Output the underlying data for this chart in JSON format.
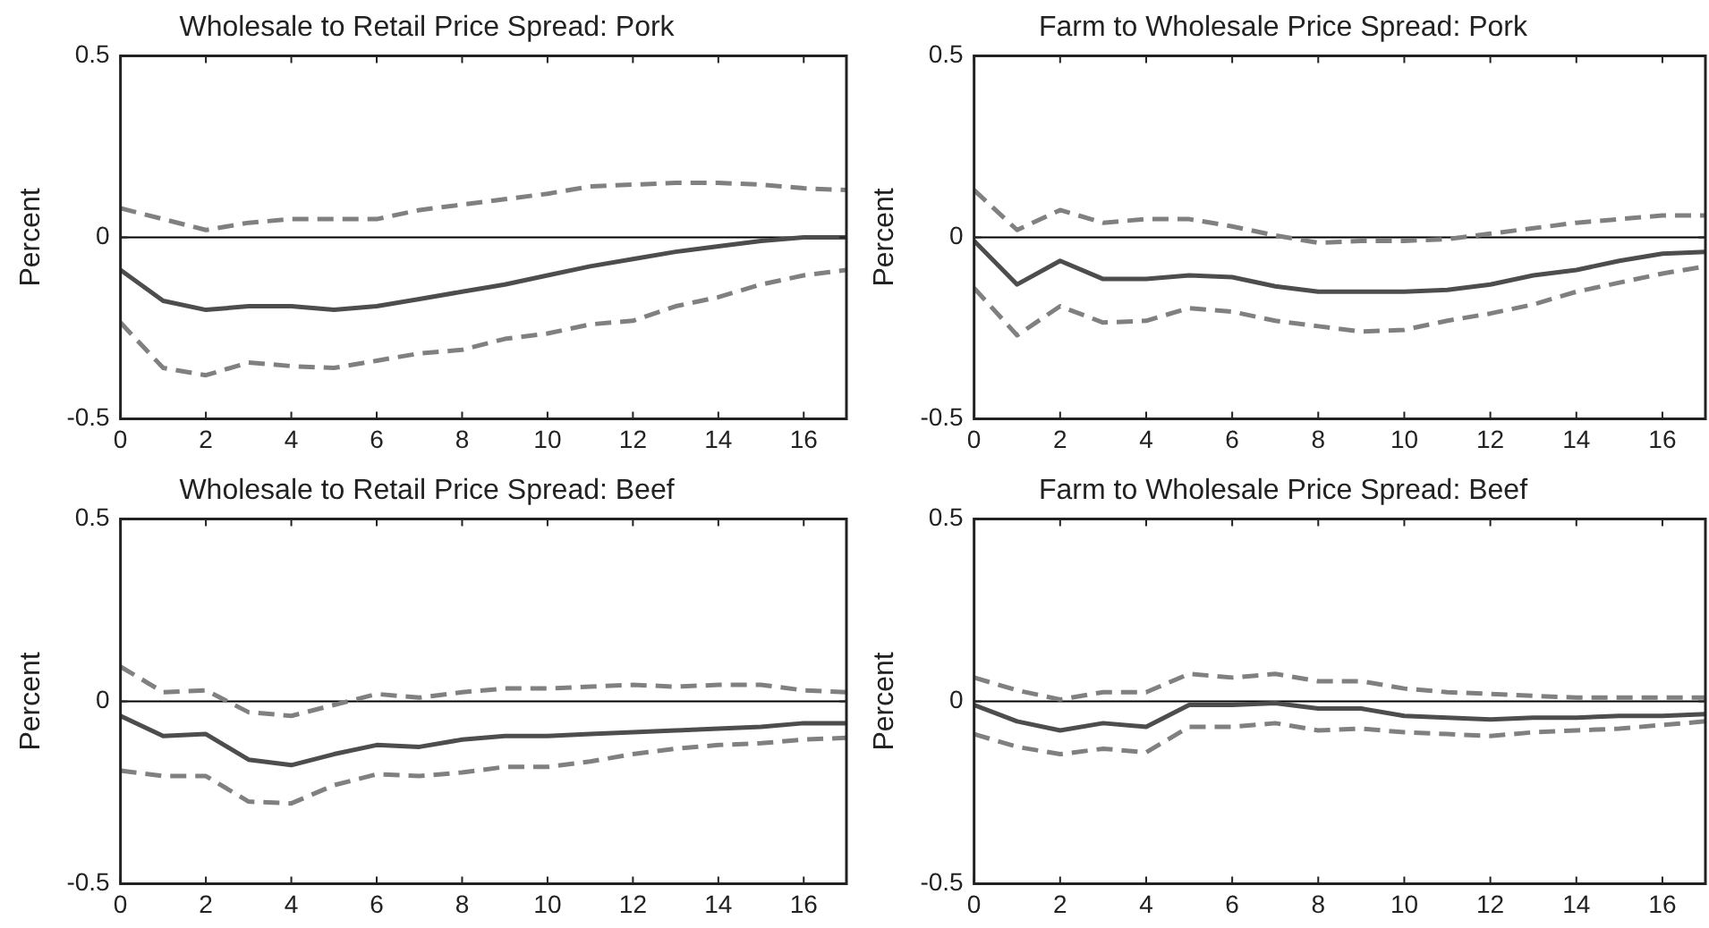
{
  "chart_data": [
    {
      "type": "line",
      "title": "Wholesale to Retail Price Spread: Pork",
      "ylabel": "Percent",
      "x": [
        0,
        1,
        2,
        3,
        4,
        5,
        6,
        7,
        8,
        9,
        10,
        11,
        12,
        13,
        14,
        15,
        16,
        17
      ],
      "xlim": [
        0,
        17
      ],
      "xticks": [
        0,
        2,
        4,
        6,
        8,
        10,
        12,
        14,
        16
      ],
      "ylim": [
        -0.5,
        0.5
      ],
      "yticks": [
        -0.5,
        0,
        0.5
      ],
      "grid": false,
      "legend": false,
      "marker": "none",
      "ref_lines": [
        {
          "axis": "y",
          "value": 0,
          "color": "#000000"
        }
      ],
      "series": [
        {
          "color": "#4d4d4d",
          "line_style": "solid",
          "values": [
            -0.09,
            -0.175,
            -0.2,
            -0.19,
            -0.19,
            -0.2,
            -0.19,
            -0.17,
            -0.15,
            -0.13,
            -0.105,
            -0.08,
            -0.06,
            -0.04,
            -0.025,
            -0.01,
            0,
            0
          ]
        },
        {
          "color": "#808080",
          "line_style": "dashed",
          "values": [
            0.08,
            0.05,
            0.02,
            0.04,
            0.05,
            0.05,
            0.05,
            0.075,
            0.09,
            0.105,
            0.12,
            0.14,
            0.145,
            0.15,
            0.15,
            0.145,
            0.135,
            0.13
          ]
        },
        {
          "color": "#808080",
          "line_style": "dashed",
          "values": [
            -0.235,
            -0.36,
            -0.38,
            -0.345,
            -0.355,
            -0.36,
            -0.34,
            -0.32,
            -0.31,
            -0.28,
            -0.265,
            -0.24,
            -0.23,
            -0.19,
            -0.165,
            -0.13,
            -0.105,
            -0.09
          ]
        }
      ]
    },
    {
      "type": "line",
      "title": "Farm to Wholesale Price Spread: Pork",
      "ylabel": "Percent",
      "x": [
        0,
        1,
        2,
        3,
        4,
        5,
        6,
        7,
        8,
        9,
        10,
        11,
        12,
        13,
        14,
        15,
        16,
        17
      ],
      "xlim": [
        0,
        17
      ],
      "xticks": [
        0,
        2,
        4,
        6,
        8,
        10,
        12,
        14,
        16
      ],
      "ylim": [
        -0.5,
        0.5
      ],
      "yticks": [
        -0.5,
        0,
        0.5
      ],
      "grid": false,
      "legend": false,
      "marker": "none",
      "ref_lines": [
        {
          "axis": "y",
          "value": 0,
          "color": "#000000"
        }
      ],
      "series": [
        {
          "color": "#4d4d4d",
          "line_style": "solid",
          "values": [
            -0.01,
            -0.13,
            -0.065,
            -0.115,
            -0.115,
            -0.105,
            -0.11,
            -0.135,
            -0.15,
            -0.15,
            -0.15,
            -0.145,
            -0.13,
            -0.105,
            -0.09,
            -0.065,
            -0.045,
            -0.04
          ]
        },
        {
          "color": "#808080",
          "line_style": "dashed",
          "values": [
            0.13,
            0.02,
            0.075,
            0.04,
            0.05,
            0.05,
            0.03,
            0.005,
            -0.015,
            -0.01,
            -0.01,
            -0.005,
            0.01,
            0.025,
            0.04,
            0.05,
            0.06,
            0.06
          ]
        },
        {
          "color": "#808080",
          "line_style": "dashed",
          "values": [
            -0.14,
            -0.27,
            -0.19,
            -0.235,
            -0.23,
            -0.195,
            -0.205,
            -0.23,
            -0.245,
            -0.26,
            -0.255,
            -0.23,
            -0.21,
            -0.185,
            -0.15,
            -0.125,
            -0.1,
            -0.08
          ]
        }
      ]
    },
    {
      "type": "line",
      "title": "Wholesale to Retail Price Spread: Beef",
      "ylabel": "Percent",
      "x": [
        0,
        1,
        2,
        3,
        4,
        5,
        6,
        7,
        8,
        9,
        10,
        11,
        12,
        13,
        14,
        15,
        16,
        17
      ],
      "xlim": [
        0,
        17
      ],
      "xticks": [
        0,
        2,
        4,
        6,
        8,
        10,
        12,
        14,
        16
      ],
      "ylim": [
        -0.5,
        0.5
      ],
      "yticks": [
        -0.5,
        0,
        0.5
      ],
      "grid": false,
      "legend": false,
      "marker": "none",
      "ref_lines": [
        {
          "axis": "y",
          "value": 0,
          "color": "#000000"
        }
      ],
      "series": [
        {
          "color": "#4d4d4d",
          "line_style": "solid",
          "values": [
            -0.04,
            -0.095,
            -0.09,
            -0.16,
            -0.175,
            -0.145,
            -0.12,
            -0.125,
            -0.105,
            -0.095,
            -0.095,
            -0.09,
            -0.085,
            -0.08,
            -0.075,
            -0.07,
            -0.06,
            -0.06
          ]
        },
        {
          "color": "#808080",
          "line_style": "dashed",
          "values": [
            0.095,
            0.025,
            0.03,
            -0.03,
            -0.04,
            -0.01,
            0.02,
            0.01,
            0.025,
            0.035,
            0.035,
            0.04,
            0.045,
            0.04,
            0.045,
            0.045,
            0.03,
            0.025
          ]
        },
        {
          "color": "#808080",
          "line_style": "dashed",
          "values": [
            -0.19,
            -0.205,
            -0.205,
            -0.275,
            -0.28,
            -0.23,
            -0.2,
            -0.205,
            -0.195,
            -0.18,
            -0.18,
            -0.165,
            -0.145,
            -0.13,
            -0.12,
            -0.115,
            -0.105,
            -0.1
          ]
        }
      ]
    },
    {
      "type": "line",
      "title": "Farm to Wholesale Price Spread: Beef",
      "ylabel": "Percent",
      "x": [
        0,
        1,
        2,
        3,
        4,
        5,
        6,
        7,
        8,
        9,
        10,
        11,
        12,
        13,
        14,
        15,
        16,
        17
      ],
      "xlim": [
        0,
        17
      ],
      "xticks": [
        0,
        2,
        4,
        6,
        8,
        10,
        12,
        14,
        16
      ],
      "ylim": [
        -0.5,
        0.5
      ],
      "yticks": [
        -0.5,
        0,
        0.5
      ],
      "grid": false,
      "legend": false,
      "marker": "none",
      "ref_lines": [
        {
          "axis": "y",
          "value": 0,
          "color": "#000000"
        }
      ],
      "series": [
        {
          "color": "#4d4d4d",
          "line_style": "solid",
          "values": [
            -0.01,
            -0.055,
            -0.08,
            -0.06,
            -0.07,
            -0.01,
            -0.01,
            -0.005,
            -0.02,
            -0.02,
            -0.04,
            -0.045,
            -0.05,
            -0.045,
            -0.045,
            -0.04,
            -0.04,
            -0.035
          ]
        },
        {
          "color": "#808080",
          "line_style": "dashed",
          "values": [
            0.065,
            0.03,
            0.005,
            0.025,
            0.025,
            0.075,
            0.065,
            0.075,
            0.055,
            0.055,
            0.035,
            0.025,
            0.02,
            0.015,
            0.01,
            0.01,
            0.01,
            0.01
          ]
        },
        {
          "color": "#808080",
          "line_style": "dashed",
          "values": [
            -0.09,
            -0.125,
            -0.145,
            -0.13,
            -0.14,
            -0.07,
            -0.07,
            -0.06,
            -0.08,
            -0.075,
            -0.085,
            -0.09,
            -0.095,
            -0.085,
            -0.08,
            -0.075,
            -0.065,
            -0.055
          ]
        }
      ]
    }
  ]
}
